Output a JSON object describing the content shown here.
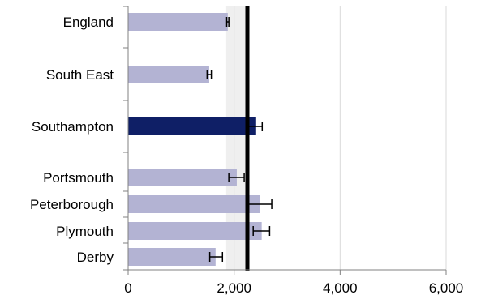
{
  "chart_data": {
    "type": "bar",
    "orientation": "horizontal",
    "title": "",
    "xlabel": "",
    "ylabel": "",
    "xlim": [
      0,
      6000
    ],
    "x_ticks": [
      0,
      2000,
      4000,
      6000
    ],
    "x_tick_labels": [
      "0",
      "2,000",
      "4,000",
      "6,000"
    ],
    "grid": "vertical gridlines",
    "legend": "none",
    "categories": [
      "England",
      "South East",
      "Southampton",
      "Portsmouth",
      "Peterborough",
      "Plymouth",
      "Derby"
    ],
    "values": [
      1880,
      1530,
      2400,
      2050,
      2480,
      2520,
      1650
    ],
    "error_low": [
      1860,
      1490,
      2270,
      1900,
      2260,
      2360,
      1540
    ],
    "error_high": [
      1900,
      1570,
      2530,
      2190,
      2710,
      2670,
      1780
    ],
    "highlight_category": "Southampton",
    "reference_line": 2250,
    "reference_band": [
      1850,
      2250
    ],
    "colors": {
      "bar": "#b3b3d3",
      "highlight": "#0f1f66",
      "reference_line": "#000000",
      "reference_band": "#efefef",
      "grid": "#d9d9d9",
      "axis": "#808080"
    }
  }
}
